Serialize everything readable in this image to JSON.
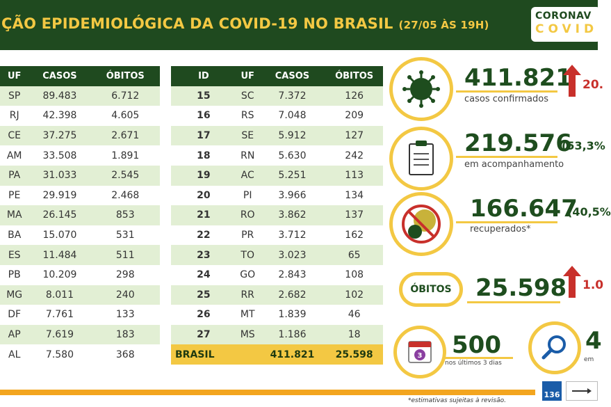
{
  "header": {
    "title": "ÇÃO EPIDEMIOLÓGICA DA COVID-19 NO BRASIL",
    "date": "(27/05 ÀS 19H)",
    "logo_line1": "CORONAV",
    "logo_line2": "COVID"
  },
  "table1": {
    "headers": [
      "UF",
      "CASOS",
      "ÓBITOS"
    ],
    "rows": [
      [
        "SP",
        "89.483",
        "6.712"
      ],
      [
        "RJ",
        "42.398",
        "4.605"
      ],
      [
        "CE",
        "37.275",
        "2.671"
      ],
      [
        "AM",
        "33.508",
        "1.891"
      ],
      [
        "PA",
        "31.033",
        "2.545"
      ],
      [
        "PE",
        "29.919",
        "2.468"
      ],
      [
        "MA",
        "26.145",
        "853"
      ],
      [
        "BA",
        "15.070",
        "531"
      ],
      [
        "ES",
        "11.484",
        "511"
      ],
      [
        "PB",
        "10.209",
        "298"
      ],
      [
        "MG",
        "8.011",
        "240"
      ],
      [
        "DF",
        "7.761",
        "133"
      ],
      [
        "AP",
        "7.619",
        "183"
      ],
      [
        "AL",
        "7.580",
        "368"
      ]
    ]
  },
  "table2": {
    "headers": [
      "ID",
      "UF",
      "CASOS",
      "ÓBITOS"
    ],
    "rows": [
      [
        "15",
        "SC",
        "7.372",
        "126"
      ],
      [
        "16",
        "RS",
        "7.048",
        "209"
      ],
      [
        "17",
        "SE",
        "5.912",
        "127"
      ],
      [
        "18",
        "RN",
        "5.630",
        "242"
      ],
      [
        "19",
        "AC",
        "5.251",
        "113"
      ],
      [
        "20",
        "PI",
        "3.966",
        "134"
      ],
      [
        "21",
        "RO",
        "3.862",
        "137"
      ],
      [
        "22",
        "PR",
        "3.712",
        "162"
      ],
      [
        "23",
        "TO",
        "3.023",
        "65"
      ],
      [
        "24",
        "GO",
        "2.843",
        "108"
      ],
      [
        "25",
        "RR",
        "2.682",
        "102"
      ],
      [
        "26",
        "MT",
        "1.839",
        "46"
      ],
      [
        "27",
        "MS",
        "1.186",
        "18"
      ]
    ],
    "total": [
      "BRASIL",
      "",
      "411.821",
      "25.598"
    ]
  },
  "stats": {
    "confirmed": {
      "value": "411.821",
      "label": "casos confirmados",
      "pct": "20."
    },
    "monitoring": {
      "value": "219.576",
      "pct": "(53,3%",
      "label": "em acompanhamento"
    },
    "recovered": {
      "value": "166.647",
      "pct": "(40,5%",
      "label": "recuperados*"
    },
    "deaths": {
      "badge": "ÓBITOS",
      "value": "25.598",
      "pct": "1.0"
    },
    "recent": {
      "value": "500",
      "label": "nos últimos 3 dias",
      "badge": "3"
    },
    "investigating": {
      "value": "4",
      "label": "em"
    }
  },
  "footer": {
    "note": "*estimativas sujeitas à revisão.",
    "phone": "136"
  },
  "colors": {
    "dark_green": "#1f4a1f",
    "yellow": "#f3c843",
    "light_green": "#e2efd4",
    "red": "#c8302b"
  }
}
